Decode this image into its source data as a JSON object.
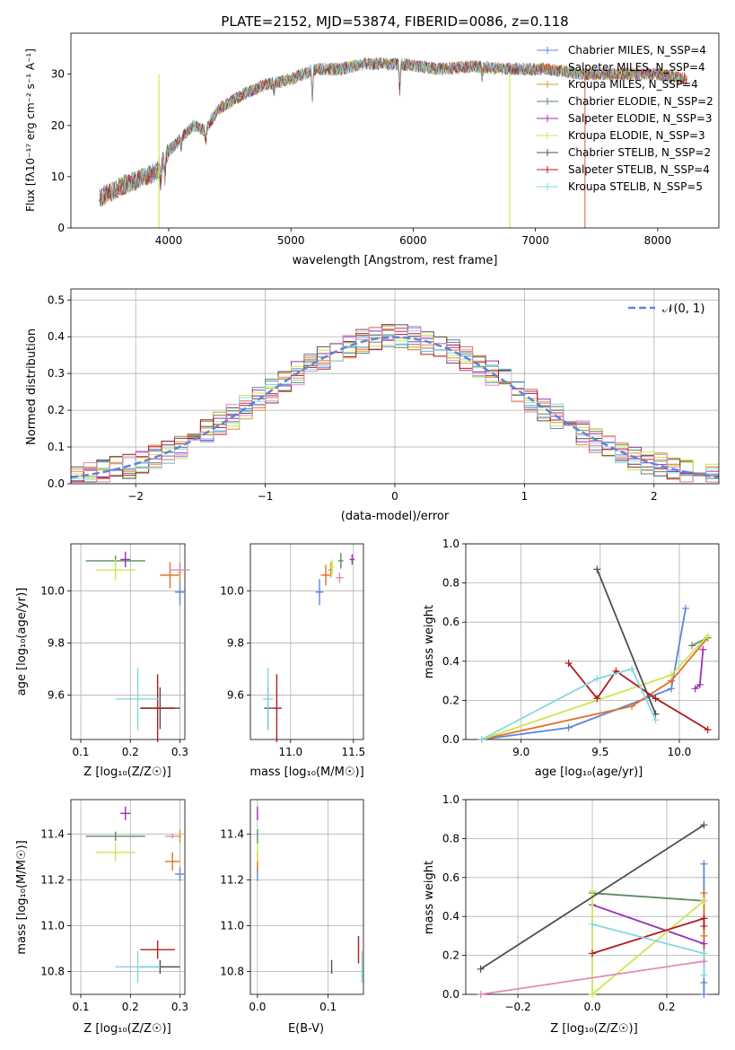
{
  "colors": {
    "chabrier_miles": "#5b87d8",
    "salpeter_miles": "#e0702b",
    "kroupa_miles": "#d89a2a",
    "chabrier_elodie": "#5d8a63",
    "salpeter_elodie": "#9b30b5",
    "kroupa_elodie": "#cde650",
    "chabrier_stelib": "#505050",
    "salpeter_stelib": "#b01c1c",
    "kroupa_stelib": "#84d8e0",
    "pink": "#e08ab8",
    "normal_curve": "#5b87d8",
    "grid": "#b0b0b0"
  },
  "chart_data": [
    {
      "id": "spectrum",
      "type": "line",
      "title": "PLATE=2152, MJD=53874, FIBERID=0086, z=0.118",
      "xlabel": "wavelength [Angstrom, rest frame]",
      "ylabel": "Flux [fλ10⁻¹⁷ erg cm⁻² s⁻¹ A⁻¹]",
      "xlim": [
        3200,
        8500
      ],
      "ylim": [
        0,
        38
      ],
      "xticks": [
        "4000",
        "5000",
        "6000",
        "7000",
        "8000"
      ],
      "yticks": [
        "0",
        "10",
        "20",
        "30"
      ],
      "grid": false,
      "legend": "right",
      "continuum": {
        "x": [
          3450,
          3600,
          3800,
          3900,
          4000,
          4200,
          4300,
          4400,
          4600,
          4800,
          5000,
          5200,
          5400,
          5600,
          5900,
          6200,
          6500,
          6800,
          7100,
          7400,
          7700,
          8000,
          8250
        ],
        "y": [
          6,
          8,
          10,
          11,
          15,
          20,
          19,
          23,
          26,
          28,
          29,
          31,
          31,
          32,
          32,
          31,
          31.5,
          31,
          31,
          30,
          30,
          30,
          29
        ]
      },
      "series": [
        {
          "name": "Chabrier MILES, N_SSP=4"
        },
        {
          "name": "Salpeter MILES, N_SSP=4"
        },
        {
          "name": "Kroupa MILES, N_SSP=4"
        },
        {
          "name": "Chabrier ELODIE, N_SSP=2"
        },
        {
          "name": "Salpeter ELODIE, N_SSP=3"
        },
        {
          "name": "Kroupa ELODIE, N_SSP=3"
        },
        {
          "name": "Chabrier STELIB, N_SSP=2"
        },
        {
          "name": "Salpeter STELIB, N_SSP=4"
        },
        {
          "name": "Kroupa STELIB, N_SSP=5"
        }
      ]
    },
    {
      "id": "residuals",
      "type": "line",
      "xlabel": "(data-model)/error",
      "ylabel": "Normed distribution",
      "xlim": [
        -2.5,
        2.5
      ],
      "ylim": [
        0,
        0.53
      ],
      "xticks": [
        "−2",
        "−1",
        "0",
        "1",
        "2"
      ],
      "yticks": [
        "0.0",
        "0.1",
        "0.2",
        "0.3",
        "0.4",
        "0.5"
      ],
      "grid": true,
      "legend": "top-right",
      "normal_label": "𝒩(0, 1)",
      "bin_width": 0.1
    },
    {
      "id": "age_vs_Z",
      "type": "scatter",
      "xlabel": "Z [log₁₀(Z/Z☉)]",
      "ylabel": "age  [log₁₀(age/yr)]",
      "xlim": [
        0.08,
        0.31
      ],
      "ylim": [
        9.43,
        10.18
      ],
      "xticks": [
        "0.1",
        "0.2",
        "0.3"
      ],
      "yticks": [
        "9.6",
        "9.8",
        "10.0"
      ],
      "grid": true,
      "points": [
        {
          "c": "chabrier_miles",
          "x": 0.3,
          "y": 9.995,
          "ex": 0.01,
          "ey": 0.05
        },
        {
          "c": "salpeter_miles",
          "x": 0.28,
          "y": 10.06,
          "ex": 0.02,
          "ey": 0.05
        },
        {
          "c": "kroupa_miles",
          "x": 0.3,
          "y": 10.07,
          "ex": 0.003,
          "ey": 0.04
        },
        {
          "c": "chabrier_elodie",
          "x": 0.17,
          "y": 10.115,
          "ex": 0.06,
          "ey": 0.02
        },
        {
          "c": "salpeter_elodie",
          "x": 0.19,
          "y": 10.12,
          "ex": 0.01,
          "ey": 0.03
        },
        {
          "c": "kroupa_elodie",
          "x": 0.17,
          "y": 10.08,
          "ex": 0.04,
          "ey": 0.04
        },
        {
          "c": "chabrier_stelib",
          "x": 0.26,
          "y": 9.55,
          "ex": 0.04,
          "ey": 0.08
        },
        {
          "c": "salpeter_stelib",
          "x": 0.255,
          "y": 9.55,
          "ex": 0.035,
          "ey": 0.13
        },
        {
          "c": "kroupa_stelib",
          "x": 0.215,
          "y": 9.585,
          "ex": 0.045,
          "ey": 0.12
        },
        {
          "c": "pink",
          "x": 0.3,
          "y": 10.08,
          "ex": 0.02,
          "ey": 0.03
        }
      ]
    },
    {
      "id": "age_vs_mass",
      "type": "scatter",
      "xlabel": "mass [log₁₀(M/M☉)]",
      "ylabel": "",
      "xlim": [
        10.68,
        11.58
      ],
      "ylim": [
        9.43,
        10.18
      ],
      "xticks": [
        "11.0",
        "11.5"
      ],
      "yticks": [
        "9.6",
        "9.8",
        "10.0"
      ],
      "grid": true,
      "points": [
        {
          "c": "chabrier_miles",
          "x": 11.23,
          "y": 9.995,
          "ex": 0.03,
          "ey": 0.05
        },
        {
          "c": "salpeter_miles",
          "x": 11.28,
          "y": 10.06,
          "ex": 0.04,
          "ey": 0.04
        },
        {
          "c": "kroupa_miles",
          "x": 11.32,
          "y": 10.08,
          "ex": 0.02,
          "ey": 0.03
        },
        {
          "c": "chabrier_elodie",
          "x": 11.4,
          "y": 10.115,
          "ex": 0.02,
          "ey": 0.03
        },
        {
          "c": "salpeter_elodie",
          "x": 11.49,
          "y": 10.12,
          "ex": 0.02,
          "ey": 0.02
        },
        {
          "c": "kroupa_elodie",
          "x": 11.33,
          "y": 10.09,
          "ex": 0.02,
          "ey": 0.03
        },
        {
          "c": "chabrier_stelib",
          "x": 10.82,
          "y": 9.55,
          "ex": 0.03,
          "ey": 0.08
        },
        {
          "c": "salpeter_stelib",
          "x": 10.89,
          "y": 9.55,
          "ex": 0.04,
          "ey": 0.13
        },
        {
          "c": "kroupa_stelib",
          "x": 10.82,
          "y": 9.585,
          "ex": 0.04,
          "ey": 0.12
        },
        {
          "c": "pink",
          "x": 11.39,
          "y": 10.05,
          "ex": 0.03,
          "ey": 0.02
        }
      ]
    },
    {
      "id": "weight_vs_age",
      "type": "line",
      "xlabel": "age  [log₁₀(age/yr)]",
      "ylabel": "mass weight",
      "xlim": [
        8.65,
        10.25
      ],
      "ylim": [
        0,
        1
      ],
      "xticks": [
        "9.0",
        "9.5",
        "10.0"
      ],
      "yticks": [
        "0.0",
        "0.2",
        "0.4",
        "0.6",
        "0.8",
        "1.0"
      ],
      "grid": true,
      "series": [
        {
          "c": "chabrier_miles",
          "x": [
            8.75,
            9.3,
            9.95,
            10.04
          ],
          "y": [
            0.0,
            0.06,
            0.26,
            0.67
          ]
        },
        {
          "c": "salpeter_miles",
          "x": [
            8.75,
            9.7,
            9.95,
            10.18
          ],
          "y": [
            0.0,
            0.17,
            0.3,
            0.52
          ]
        },
        {
          "c": "chabrier_elodie",
          "x": [
            10.08,
            10.18
          ],
          "y": [
            0.48,
            0.52
          ]
        },
        {
          "c": "salpeter_elodie",
          "x": [
            10.1,
            10.13,
            10.15
          ],
          "y": [
            0.26,
            0.28,
            0.46
          ]
        },
        {
          "c": "kroupa_elodie",
          "x": [
            8.75,
            9.95,
            10.18
          ],
          "y": [
            0.0,
            0.33,
            0.53
          ]
        },
        {
          "c": "chabrier_stelib",
          "x": [
            9.48,
            9.85
          ],
          "y": [
            0.87,
            0.13
          ]
        },
        {
          "c": "salpeter_stelib",
          "x": [
            9.3,
            9.48,
            9.6,
            9.85,
            10.18
          ],
          "y": [
            0.39,
            0.21,
            0.35,
            0.21,
            0.05
          ]
        },
        {
          "c": "kroupa_stelib",
          "x": [
            8.75,
            9.48,
            9.7,
            9.85
          ],
          "y": [
            0.0,
            0.31,
            0.36,
            0.1
          ]
        }
      ]
    },
    {
      "id": "mass_vs_Z",
      "type": "scatter",
      "xlabel": "Z [log₁₀(Z/Z☉)]",
      "ylabel": "mass [log₁₀(M/M☉)]",
      "xlim": [
        0.08,
        0.31
      ],
      "ylim": [
        10.7,
        11.55
      ],
      "xticks": [
        "0.1",
        "0.2",
        "0.3"
      ],
      "yticks": [
        "10.8",
        "11.0",
        "11.2",
        "11.4"
      ],
      "grid": true,
      "points": [
        {
          "c": "chabrier_miles",
          "x": 0.3,
          "y": 11.225,
          "ex": 0.01,
          "ey": 0.03
        },
        {
          "c": "salpeter_miles",
          "x": 0.285,
          "y": 11.28,
          "ex": 0.015,
          "ey": 0.04
        },
        {
          "c": "kroupa_miles",
          "x": 0.3,
          "y": 11.39,
          "ex": 0.003,
          "ey": 0.03
        },
        {
          "c": "chabrier_elodie",
          "x": 0.17,
          "y": 11.39,
          "ex": 0.06,
          "ey": 0.02
        },
        {
          "c": "salpeter_elodie",
          "x": 0.19,
          "y": 11.49,
          "ex": 0.01,
          "ey": 0.03
        },
        {
          "c": "kroupa_elodie",
          "x": 0.17,
          "y": 11.32,
          "ex": 0.04,
          "ey": 0.04
        },
        {
          "c": "chabrier_stelib",
          "x": 0.26,
          "y": 10.82,
          "ex": 0.04,
          "ey": 0.03
        },
        {
          "c": "salpeter_stelib",
          "x": 0.255,
          "y": 10.895,
          "ex": 0.035,
          "ey": 0.04
        },
        {
          "c": "kroupa_stelib",
          "x": 0.215,
          "y": 10.82,
          "ex": 0.045,
          "ey": 0.07
        },
        {
          "c": "pink",
          "x": 0.285,
          "y": 11.39,
          "ex": 0.015,
          "ey": 0.01
        }
      ]
    },
    {
      "id": "mass_vs_ebv",
      "type": "scatter",
      "xlabel": "E(B-V)",
      "ylabel": "",
      "xlim": [
        -0.01,
        0.15
      ],
      "ylim": [
        10.7,
        11.55
      ],
      "xticks": [
        "0.0",
        "0.1"
      ],
      "yticks": [
        "10.8",
        "11.0",
        "11.2",
        "11.4"
      ],
      "grid": true,
      "points": [
        {
          "c": "chabrier_miles",
          "x": 0.0,
          "y": 11.225,
          "ex": 0,
          "ey": 0.03
        },
        {
          "c": "salpeter_miles",
          "x": 0.0,
          "y": 11.28,
          "ex": 0,
          "ey": 0.04
        },
        {
          "c": "chabrier_elodie",
          "x": 0.0,
          "y": 11.39,
          "ex": 0,
          "ey": 0.03
        },
        {
          "c": "salpeter_elodie",
          "x": 0.0,
          "y": 11.49,
          "ex": 0,
          "ey": 0.03
        },
        {
          "c": "kroupa_elodie",
          "x": 0.0,
          "y": 11.32,
          "ex": 0,
          "ey": 0.04
        },
        {
          "c": "chabrier_stelib",
          "x": 0.105,
          "y": 10.82,
          "ex": 0,
          "ey": 0.03
        },
        {
          "c": "salpeter_stelib",
          "x": 0.143,
          "y": 10.895,
          "ex": 0,
          "ey": 0.06
        },
        {
          "c": "kroupa_stelib",
          "x": 0.148,
          "y": 10.82,
          "ex": 0,
          "ey": 0.07
        }
      ]
    },
    {
      "id": "weight_vs_Z",
      "type": "line",
      "xlabel": "Z [log₁₀(Z/Z☉)]",
      "ylabel": "mass weight",
      "xlim": [
        -0.34,
        0.34
      ],
      "ylim": [
        0,
        1
      ],
      "xticks": [
        "−0.2",
        "0.0",
        "0.2"
      ],
      "yticks": [
        "0.0",
        "0.2",
        "0.4",
        "0.6",
        "0.8",
        "1.0"
      ],
      "grid": true,
      "series": [
        {
          "c": "chabrier_miles",
          "x": [
            0.3,
            0.3,
            0.3,
            0.3
          ],
          "y": [
            0.0,
            0.06,
            0.26,
            0.67
          ]
        },
        {
          "c": "salpeter_miles",
          "x": [
            0.3,
            0.3,
            0.3
          ],
          "y": [
            0.17,
            0.3,
            0.52
          ]
        },
        {
          "c": "chabrier_elodie",
          "x": [
            0.0,
            0.3
          ],
          "y": [
            0.52,
            0.48
          ]
        },
        {
          "c": "salpeter_elodie",
          "x": [
            0.0,
            0.3
          ],
          "y": [
            0.46,
            0.26
          ]
        },
        {
          "c": "kroupa_elodie",
          "x": [
            0.0,
            0.0,
            0.3
          ],
          "y": [
            0.53,
            0.0,
            0.48
          ]
        },
        {
          "c": "chabrier_stelib",
          "x": [
            -0.3,
            0.3
          ],
          "y": [
            0.13,
            0.87
          ]
        },
        {
          "c": "salpeter_stelib",
          "x": [
            0.0,
            0.3,
            0.3
          ],
          "y": [
            0.21,
            0.39,
            0.35
          ]
        },
        {
          "c": "kroupa_stelib",
          "x": [
            0.0,
            0.3,
            0.3
          ],
          "y": [
            0.36,
            0.21,
            0.1
          ]
        },
        {
          "c": "pink",
          "x": [
            -0.3,
            0.3
          ],
          "y": [
            0.0,
            0.17
          ]
        }
      ]
    }
  ]
}
